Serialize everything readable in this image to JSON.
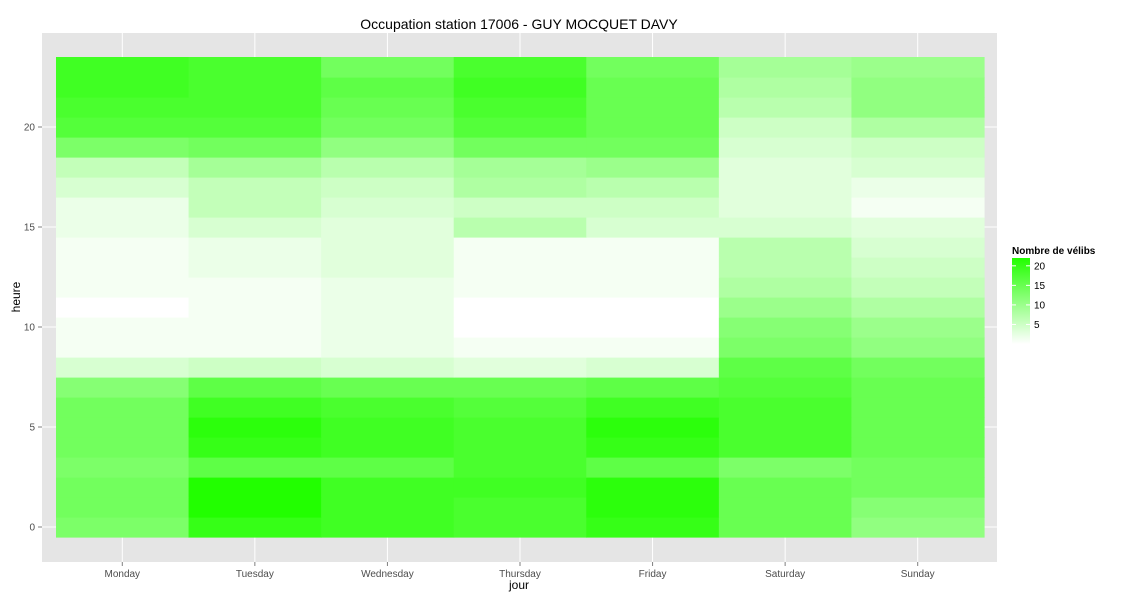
{
  "chart_data": {
    "type": "heatmap",
    "title": "Occupation station 17006 - GUY MOCQUET DAVY",
    "xlabel": "jour",
    "ylabel": "heure",
    "x_categories": [
      "Monday",
      "Tuesday",
      "Wednesday",
      "Thursday",
      "Friday",
      "Saturday",
      "Sunday"
    ],
    "y_values": [
      0,
      1,
      2,
      3,
      4,
      5,
      6,
      7,
      8,
      9,
      10,
      11,
      12,
      13,
      14,
      15,
      16,
      17,
      18,
      19,
      20,
      21,
      22,
      23
    ],
    "y_ticks": [
      0,
      5,
      10,
      15,
      20
    ],
    "values": [
      [
        13,
        20,
        19,
        18,
        20,
        15,
        11
      ],
      [
        14,
        22,
        19,
        18,
        21,
        15,
        12
      ],
      [
        14,
        22,
        19,
        19,
        21,
        15,
        14
      ],
      [
        13,
        16,
        16,
        18,
        16,
        13,
        14
      ],
      [
        14,
        20,
        19,
        18,
        20,
        18,
        15
      ],
      [
        14,
        21,
        19,
        18,
        21,
        18,
        15
      ],
      [
        14,
        19,
        18,
        17,
        19,
        18,
        15
      ],
      [
        12,
        16,
        15,
        15,
        16,
        17,
        15
      ],
      [
        4,
        5,
        4,
        3,
        4,
        16,
        14
      ],
      [
        1,
        1,
        2,
        1,
        1,
        13,
        11
      ],
      [
        1,
        1,
        2,
        0,
        0,
        12,
        10
      ],
      [
        0,
        1,
        2,
        0,
        0,
        10,
        8
      ],
      [
        1,
        1,
        2,
        1,
        1,
        8,
        6
      ],
      [
        1,
        2,
        3,
        1,
        1,
        7,
        5
      ],
      [
        1,
        2,
        3,
        1,
        1,
        7,
        4
      ],
      [
        2,
        4,
        3,
        7,
        4,
        4,
        3
      ],
      [
        2,
        6,
        4,
        5,
        5,
        3,
        1
      ],
      [
        4,
        6,
        5,
        8,
        7,
        3,
        2
      ],
      [
        6,
        9,
        7,
        9,
        10,
        3,
        4
      ],
      [
        13,
        14,
        11,
        14,
        14,
        4,
        5
      ],
      [
        17,
        17,
        14,
        17,
        15,
        5,
        8
      ],
      [
        18,
        18,
        15,
        18,
        15,
        7,
        11
      ],
      [
        19,
        18,
        16,
        19,
        15,
        8,
        11
      ],
      [
        19,
        18,
        14,
        18,
        14,
        9,
        10
      ]
    ],
    "color_scale": {
      "low": "#ffffff",
      "high": "#22ff00",
      "min": 0,
      "max": 22
    },
    "legend": {
      "title": "Nombre de vélibs",
      "ticks": [
        20,
        15,
        10,
        5
      ],
      "position": "right"
    },
    "grid": true
  }
}
